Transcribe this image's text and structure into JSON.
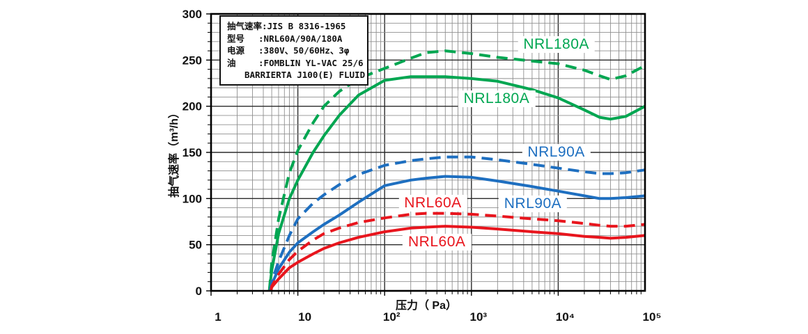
{
  "info_box": {
    "lines": [
      "抽气速率:JIS B 8316-1965",
      "型号　 :NRL60A/90A/180A",
      "电源　 :380V、50/60Hz、3φ",
      "油　　 :FOMBLIN YL-VAC 25/6",
      "　　BARRIERTA J100(E) FLUID"
    ]
  },
  "chart_data": {
    "type": "line",
    "title": "",
    "xlabel": "压力（ Pa）",
    "ylabel": "抽气速率（m³/h）",
    "x_scale": "log",
    "xlim": [
      1,
      100000
    ],
    "ylim": [
      0,
      300
    ],
    "grid": true,
    "x_ticks": [
      {
        "value": 1,
        "label": "1"
      },
      {
        "value": 10,
        "label": "10"
      },
      {
        "value": 100,
        "label": "10²"
      },
      {
        "value": 1000,
        "label": "10³"
      },
      {
        "value": 10000,
        "label": "10⁴"
      },
      {
        "value": 100000,
        "label": "10⁵"
      }
    ],
    "y_ticks": [
      0,
      50,
      100,
      150,
      200,
      250,
      300
    ],
    "y_minor_step": 10,
    "colors": {
      "nrl60a": "#E8151D",
      "nrl90a": "#1E6FC0",
      "nrl180a": "#00A651"
    },
    "series": [
      {
        "id": "nrl180a-dashed",
        "name": "NRL180A",
        "line": "dashed",
        "color": "#00A651",
        "x": [
          4.7,
          5,
          6,
          8,
          10,
          15,
          20,
          30,
          50,
          100,
          200,
          300,
          500,
          1000,
          2000,
          5000,
          10000,
          20000,
          30000,
          40000,
          60000,
          100000
        ],
        "y": [
          0,
          30,
          78,
          128,
          152,
          182,
          200,
          216,
          230,
          241,
          252,
          258,
          260,
          257,
          253,
          249,
          246,
          239,
          233,
          229,
          233,
          244
        ]
      },
      {
        "id": "nrl180a-solid",
        "name": "NRL180A",
        "line": "solid",
        "color": "#00A651",
        "x": [
          4.7,
          5,
          6,
          8,
          10,
          15,
          20,
          30,
          50,
          100,
          200,
          300,
          500,
          1000,
          2000,
          5000,
          10000,
          20000,
          30000,
          40000,
          60000,
          100000
        ],
        "y": [
          0,
          22,
          62,
          100,
          120,
          150,
          168,
          190,
          212,
          228,
          232,
          232,
          232,
          230,
          227,
          218,
          209,
          196,
          188,
          186,
          189,
          200
        ]
      },
      {
        "id": "nrl90a-dashed",
        "name": "NRL90A",
        "line": "dashed",
        "color": "#1E6FC0",
        "x": [
          4.8,
          5,
          6,
          8,
          10,
          15,
          20,
          30,
          50,
          100,
          200,
          300,
          500,
          1000,
          2000,
          5000,
          10000,
          20000,
          30000,
          40000,
          60000,
          100000
        ],
        "y": [
          0,
          10,
          32,
          60,
          78,
          95,
          104,
          115,
          126,
          136,
          141,
          143,
          145,
          145,
          142,
          137,
          133,
          129,
          127,
          127,
          128,
          131
        ]
      },
      {
        "id": "nrl90a-solid",
        "name": "NRL90A",
        "line": "solid",
        "color": "#1E6FC0",
        "x": [
          4.8,
          5,
          6,
          8,
          10,
          15,
          20,
          30,
          50,
          100,
          200,
          300,
          500,
          1000,
          2000,
          5000,
          10000,
          20000,
          30000,
          40000,
          60000,
          100000
        ],
        "y": [
          0,
          7,
          24,
          42,
          52,
          64,
          72,
          82,
          96,
          114,
          120,
          122,
          124,
          123,
          119,
          113,
          108,
          103,
          100,
          100,
          101,
          103
        ]
      },
      {
        "id": "nrl60a-dashed",
        "name": "NRL60A",
        "line": "dashed",
        "color": "#E8151D",
        "x": [
          4.9,
          5,
          6,
          8,
          10,
          15,
          20,
          30,
          50,
          100,
          200,
          300,
          500,
          1000,
          2000,
          5000,
          10000,
          20000,
          30000,
          40000,
          60000,
          100000
        ],
        "y": [
          0,
          5,
          18,
          34,
          43,
          55,
          62,
          68,
          74,
          79,
          83,
          84,
          84,
          83,
          81,
          78,
          76,
          73,
          71,
          70,
          70,
          72
        ]
      },
      {
        "id": "nrl60a-solid",
        "name": "NRL60A",
        "line": "solid",
        "color": "#E8151D",
        "x": [
          4.9,
          5,
          6,
          8,
          10,
          15,
          20,
          30,
          50,
          100,
          200,
          300,
          500,
          1000,
          2000,
          5000,
          10000,
          20000,
          30000,
          40000,
          60000,
          100000
        ],
        "y": [
          0,
          4,
          13,
          25,
          31,
          40,
          46,
          52,
          58,
          64,
          68,
          69,
          70,
          69,
          67,
          64,
          62,
          59,
          58,
          57,
          58,
          60
        ]
      }
    ],
    "curve_labels": [
      {
        "text": "NRL180A",
        "series": "nrl180a-dashed",
        "color": "#00A651",
        "p": 9500,
        "s": 267
      },
      {
        "text": "NRL180A",
        "series": "nrl180a-solid",
        "color": "#00A651",
        "p": 1950,
        "s": 208
      },
      {
        "text": "NRL90A",
        "series": "nrl90a-dashed",
        "color": "#1E6FC0",
        "p": 9500,
        "s": 150
      },
      {
        "text": "NRL90A",
        "series": "nrl90a-solid",
        "color": "#1E6FC0",
        "p": 5100,
        "s": 94
      },
      {
        "text": "NRL60A",
        "series": "nrl60a-dashed",
        "color": "#E8151D",
        "p": 360,
        "s": 95
      },
      {
        "text": "NRL60A",
        "series": "nrl60a-solid",
        "color": "#E8151D",
        "p": 400,
        "s": 53
      }
    ]
  }
}
